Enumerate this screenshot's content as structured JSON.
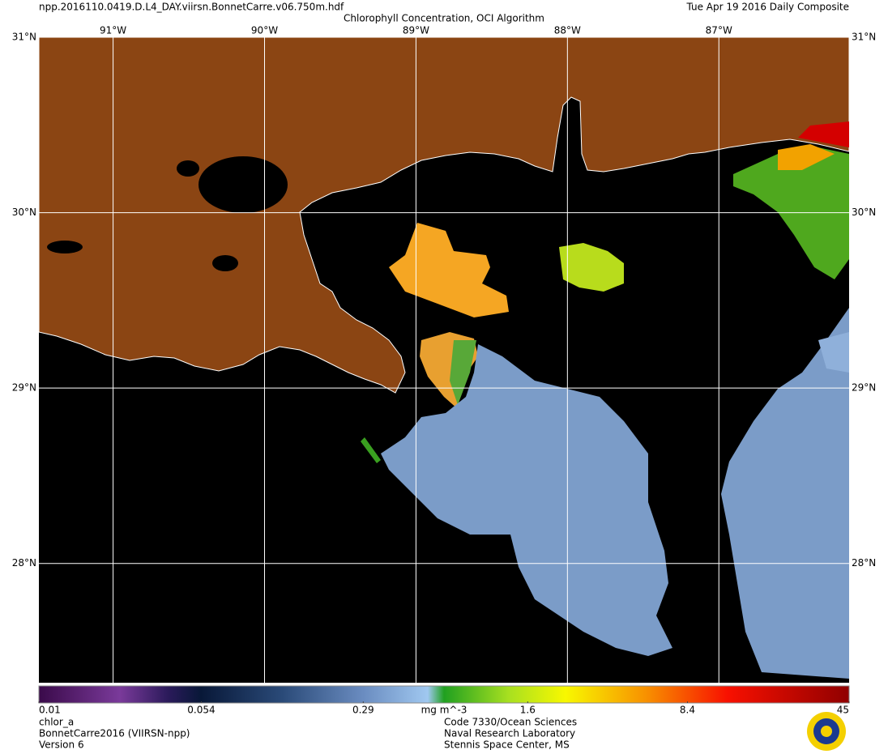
{
  "header": {
    "filename": "npp.2016110.0419.D.L4_DAY.viirsn.BonnetCarre.v06.750m.hdf",
    "date": "Tue Apr 19 2016 Daily Composite",
    "title": "Chlorophyll Concentration, OCI Algorithm"
  },
  "map": {
    "lonlim": [
      -91.49,
      -86.14
    ],
    "latlim": [
      27.32,
      31
    ],
    "lon_ticks": [
      {
        "value": -91,
        "label": "91°W"
      },
      {
        "value": -90,
        "label": "90°W"
      },
      {
        "value": -89,
        "label": "89°W"
      },
      {
        "value": -88,
        "label": "88°W"
      },
      {
        "value": -87,
        "label": "87°W"
      }
    ],
    "lat_ticks": [
      {
        "value": 31,
        "label": "31°N"
      },
      {
        "value": 30,
        "label": "30°N"
      },
      {
        "value": 29,
        "label": "29°N"
      },
      {
        "value": 28,
        "label": "28°N"
      }
    ],
    "grid": true
  },
  "colorbar": {
    "range": [
      0.01,
      45
    ],
    "ticks": [
      0.01,
      0.054,
      0.29,
      1.6,
      8.4,
      45
    ],
    "log": true,
    "unit": "mg m^-3"
  },
  "footer": {
    "left": [
      "chlor_a",
      "BonnetCarre2016 (VIIRSN-npp)",
      "Version 6"
    ],
    "right": [
      "Code 7330/Ocean Sciences",
      "Naval Research Laboratory",
      "Stennis Space Center, MS"
    ]
  }
}
